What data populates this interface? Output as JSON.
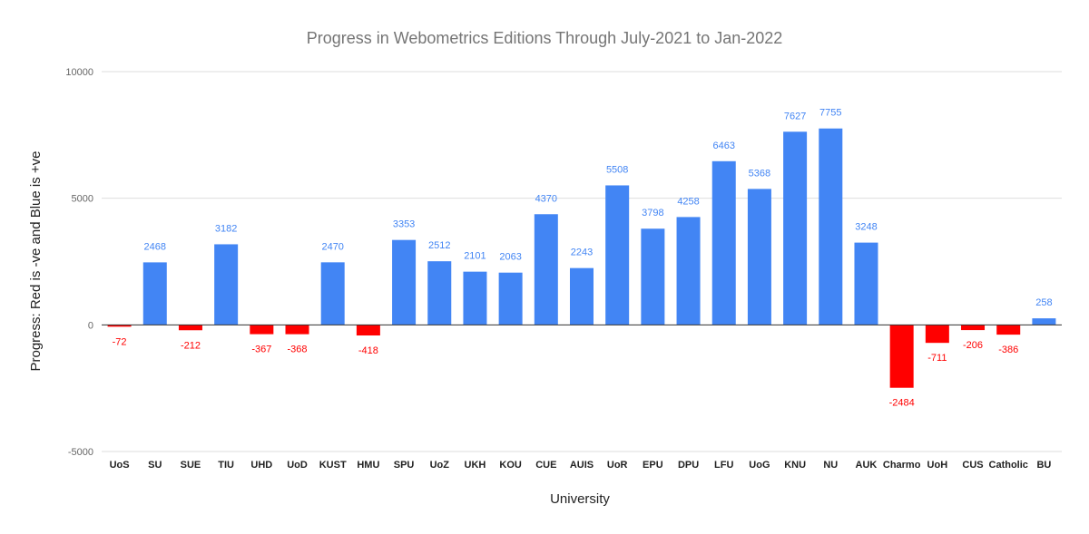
{
  "chart_data": {
    "type": "bar",
    "title": "Progress in Webometrics Editions Through July-2021 to Jan-2022",
    "xlabel": "University",
    "ylabel": "Progress: Red is -ve and Blue is +ve",
    "ylim": [
      -5000,
      10000
    ],
    "yticks": [
      {
        "value": 10000,
        "label": "10000"
      },
      {
        "value": 5000,
        "label": "5000"
      },
      {
        "value": 0,
        "label": "0"
      },
      {
        "value": -5000,
        "label": "-5000"
      }
    ],
    "grid": true,
    "legend": "none",
    "colors": {
      "positive": "#4285f4",
      "negative": "#ff0000"
    },
    "categories": [
      "UoS",
      "SU",
      "SUE",
      "TIU",
      "UHD",
      "UoD",
      "KUST",
      "HMU",
      "SPU",
      "UoZ",
      "UKH",
      "KOU",
      "CUE",
      "AUIS",
      "UoR",
      "EPU",
      "DPU",
      "LFU",
      "UoG",
      "KNU",
      "NU",
      "AUK",
      "Charmo",
      "UoH",
      "CUS",
      "Catholic",
      "BU"
    ],
    "values": [
      -72,
      2468,
      -212,
      3182,
      -367,
      -368,
      2470,
      -418,
      3353,
      2512,
      2101,
      2063,
      4370,
      2243,
      5508,
      3798,
      4258,
      6463,
      5368,
      7627,
      7755,
      3248,
      -2484,
      -711,
      -206,
      -386,
      258
    ],
    "data_labels": [
      "-72",
      "2468",
      "-212",
      "3182",
      "-367",
      "-368",
      "2470",
      "-418",
      "3353",
      "2512",
      "2101",
      "2063",
      "4370",
      "2243",
      "5508",
      "3798",
      "4258",
      "6463",
      "5368",
      "7627",
      "7755",
      "3248",
      "-2484",
      "-711",
      "-206",
      "-386",
      "258"
    ]
  }
}
